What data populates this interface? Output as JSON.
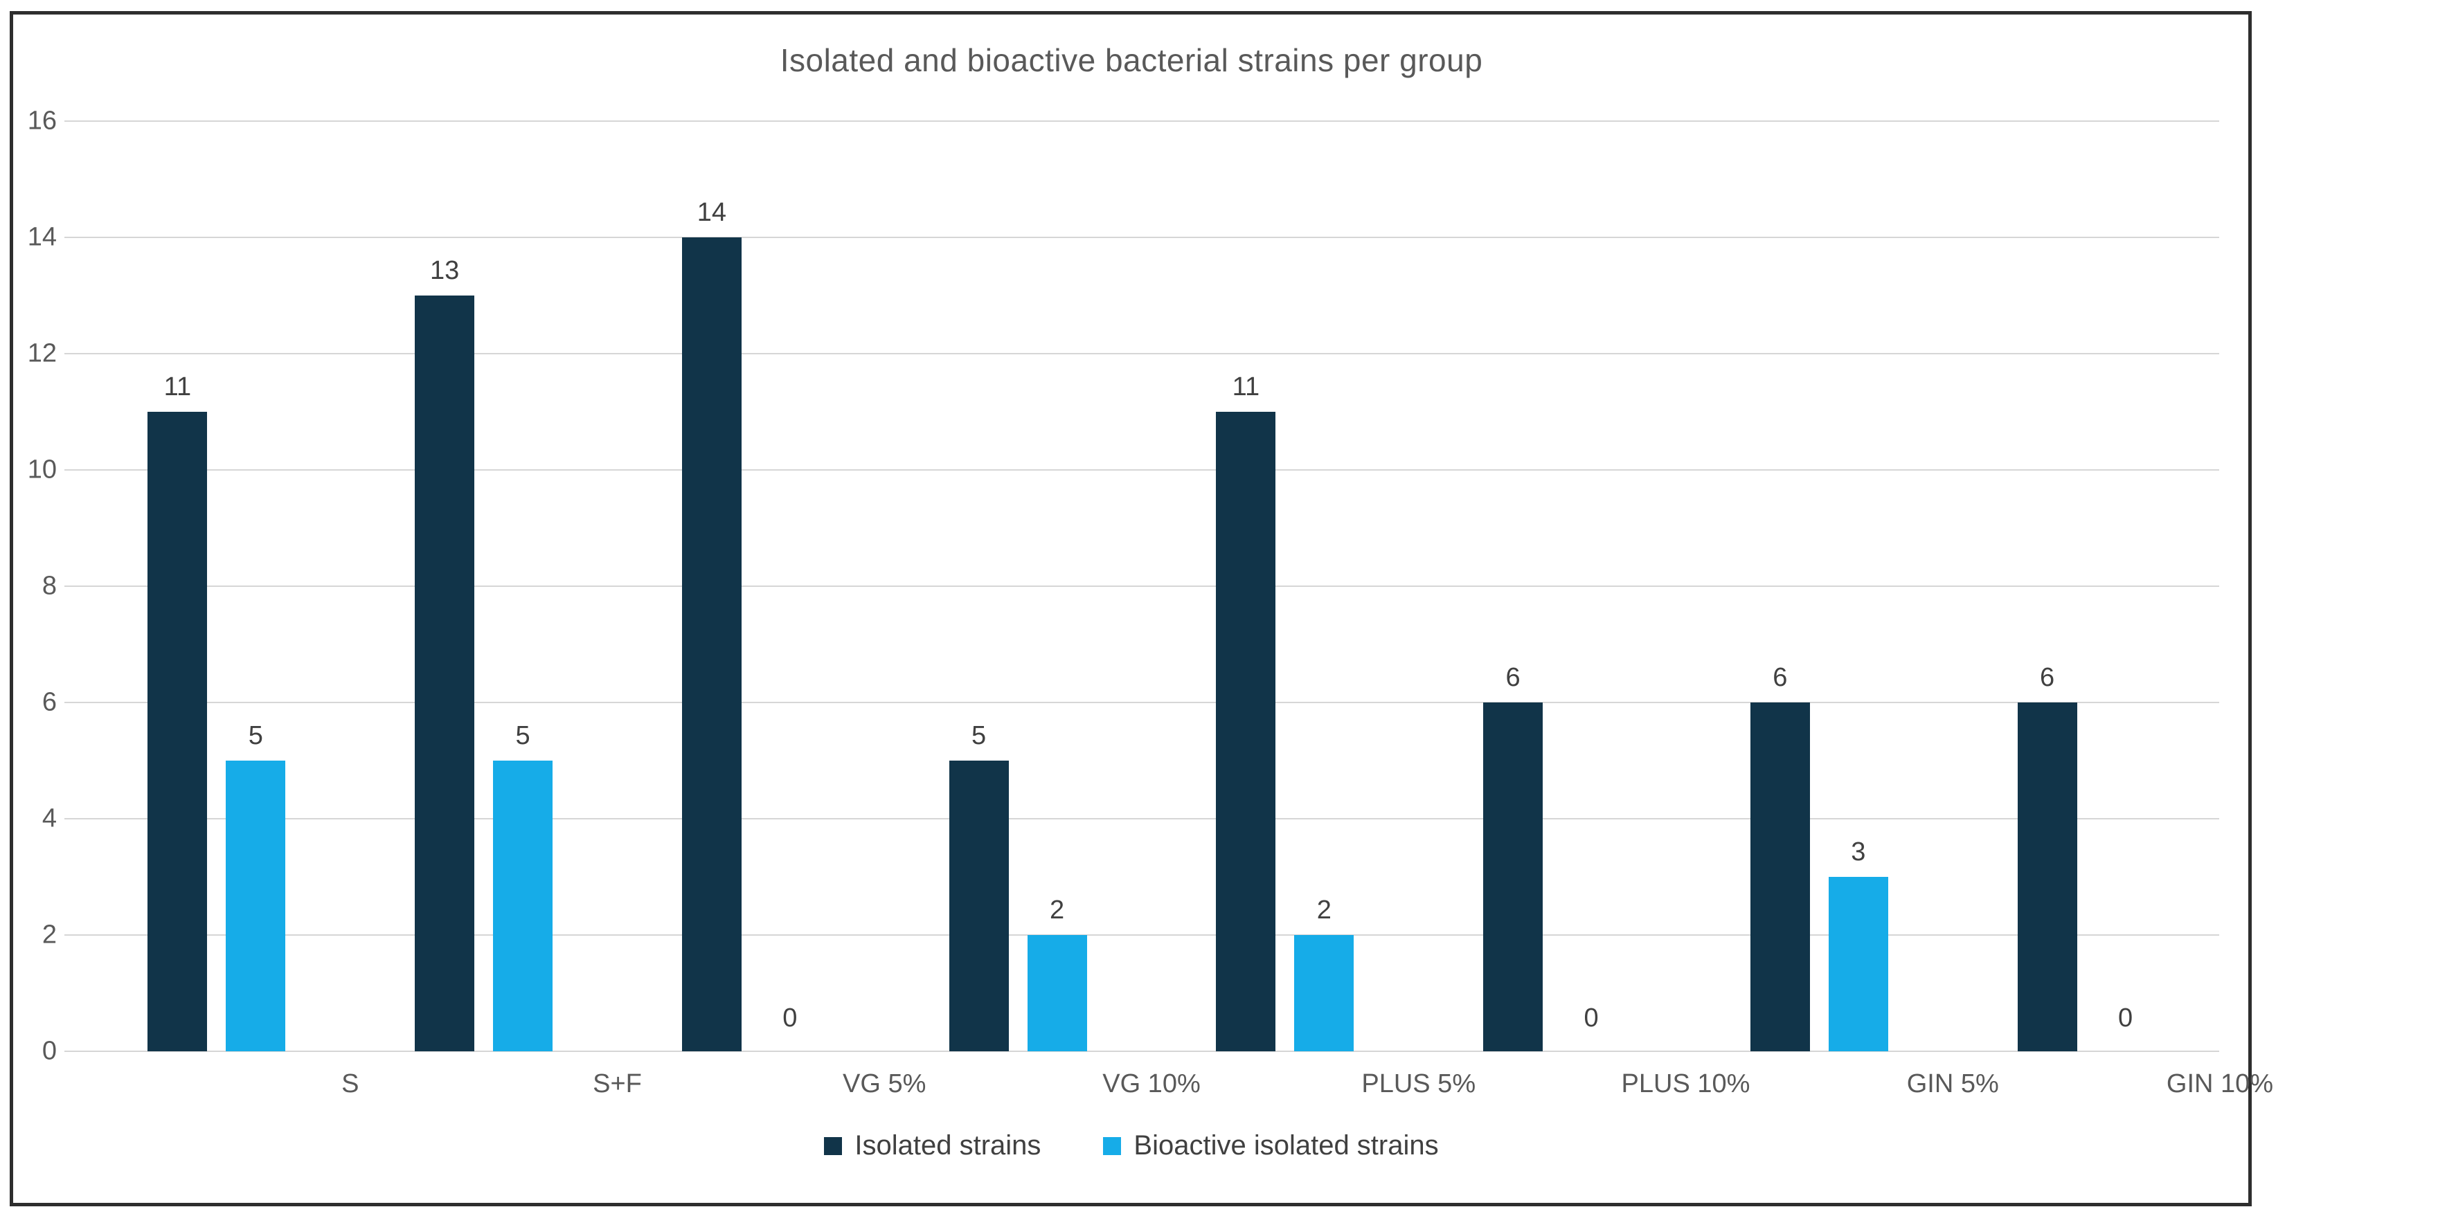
{
  "chart_data": {
    "type": "bar",
    "title": "Isolated and bioactive bacterial strains per group",
    "categories": [
      "S",
      "S+F",
      "VG 5%",
      "VG 10%",
      "PLUS 5%",
      "PLUS 10%",
      "GIN 5%",
      "GIN 10%"
    ],
    "series": [
      {
        "name": "Isolated strains",
        "values": [
          11,
          13,
          14,
          5,
          11,
          6,
          6,
          6
        ],
        "color": "#113449"
      },
      {
        "name": "Bioactive isolated strains",
        "values": [
          5,
          5,
          0,
          2,
          2,
          0,
          3,
          0
        ],
        "color": "#16ace8"
      }
    ],
    "ylim": [
      0,
      16
    ],
    "yticks": [
      0,
      2,
      4,
      6,
      8,
      10,
      12,
      14,
      16
    ],
    "grid": "horizontal",
    "gridline_color": "#d6d6d6",
    "legend_position": "bottom",
    "data_labels": true
  }
}
